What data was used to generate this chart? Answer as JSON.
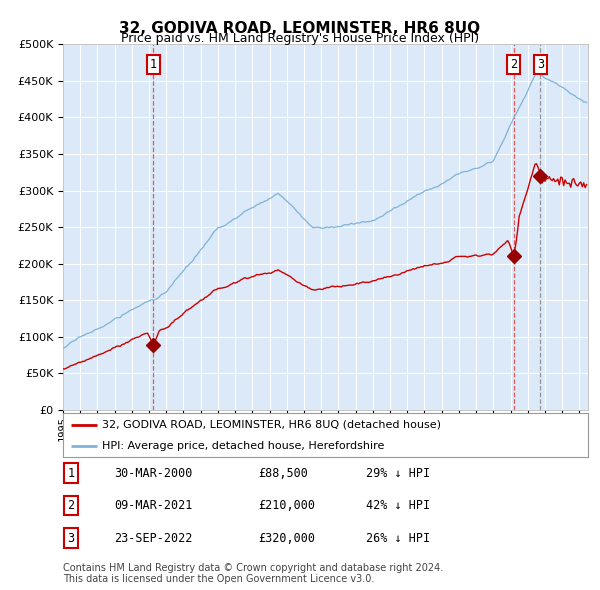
{
  "title": "32, GODIVA ROAD, LEOMINSTER, HR6 8UQ",
  "subtitle": "Price paid vs. HM Land Registry's House Price Index (HPI)",
  "background_color": "#ffffff",
  "plot_bg_color": "#dce9f8",
  "hpi_color": "#7fb3d9",
  "price_color": "#cc0000",
  "marker_color": "#990000",
  "grid_color": "#ffffff",
  "vline_red_color": "#dd4444",
  "vline_grey_color": "#888888",
  "transactions": [
    {
      "label": "1",
      "date": 2000.24,
      "price": 88500
    },
    {
      "label": "2",
      "date": 2021.18,
      "price": 210000
    },
    {
      "label": "3",
      "date": 2022.73,
      "price": 320000
    }
  ],
  "table_rows": [
    {
      "num": "1",
      "date": "30-MAR-2000",
      "price": "£88,500",
      "hpi": "29% ↓ HPI"
    },
    {
      "num": "2",
      "date": "09-MAR-2021",
      "price": "£210,000",
      "hpi": "42% ↓ HPI"
    },
    {
      "num": "3",
      "date": "23-SEP-2022",
      "price": "£320,000",
      "hpi": "26% ↓ HPI"
    }
  ],
  "legend_property": "32, GODIVA ROAD, LEOMINSTER, HR6 8UQ (detached house)",
  "legend_hpi": "HPI: Average price, detached house, Herefordshire",
  "footer_line1": "Contains HM Land Registry data © Crown copyright and database right 2024.",
  "footer_line2": "This data is licensed under the Open Government Licence v3.0.",
  "xmin": 1995.0,
  "xmax": 2025.5,
  "ymin": 0,
  "ymax": 500000,
  "yticks": [
    0,
    50000,
    100000,
    150000,
    200000,
    250000,
    300000,
    350000,
    400000,
    450000,
    500000
  ]
}
